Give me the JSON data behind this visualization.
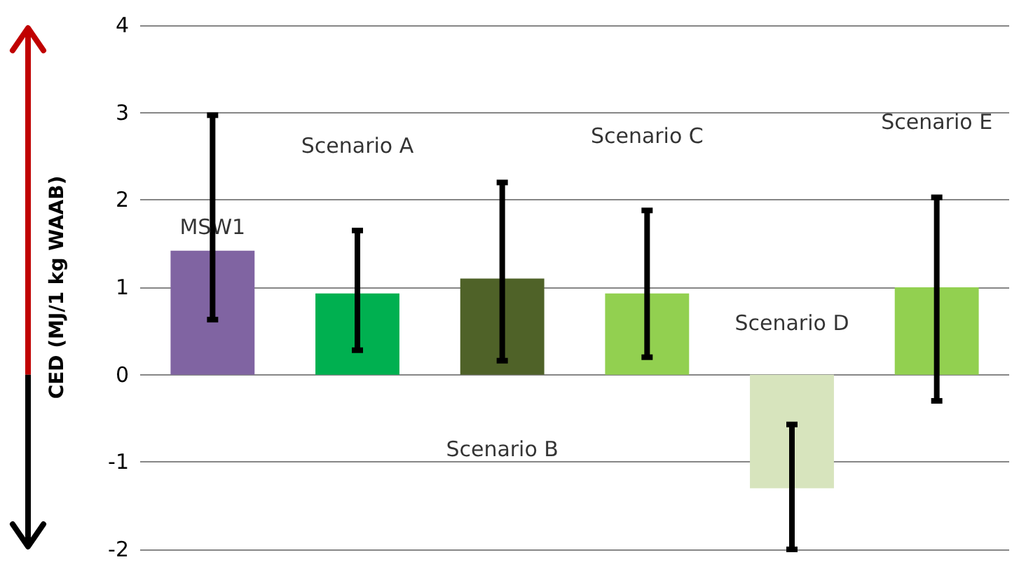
{
  "chart_data": {
    "type": "bar",
    "ylabel": "CED (MJ/1 kg WAAB)",
    "categories": [
      "MSW1",
      "Scenario A",
      "Scenario B",
      "Scenario C",
      "Scenario D",
      "Scenario E"
    ],
    "values": [
      1.42,
      0.93,
      1.1,
      0.93,
      -1.3,
      1.0
    ],
    "colors": [
      "#8064a2",
      "#00b050",
      "#4f6228",
      "#92d050",
      "#d7e4bd",
      "#92d050"
    ],
    "errors": [
      [
        0.63,
        2.97
      ],
      [
        0.28,
        1.65
      ],
      [
        0.16,
        2.2
      ],
      [
        0.2,
        1.88
      ],
      [
        -2,
        -0.57
      ],
      [
        -0.3,
        2.03
      ]
    ],
    "ylim": [
      -2,
      4
    ],
    "yticks": [
      -2,
      -1,
      0,
      1,
      2,
      3,
      4
    ],
    "grid": "y",
    "tick_labels": "y"
  }
}
